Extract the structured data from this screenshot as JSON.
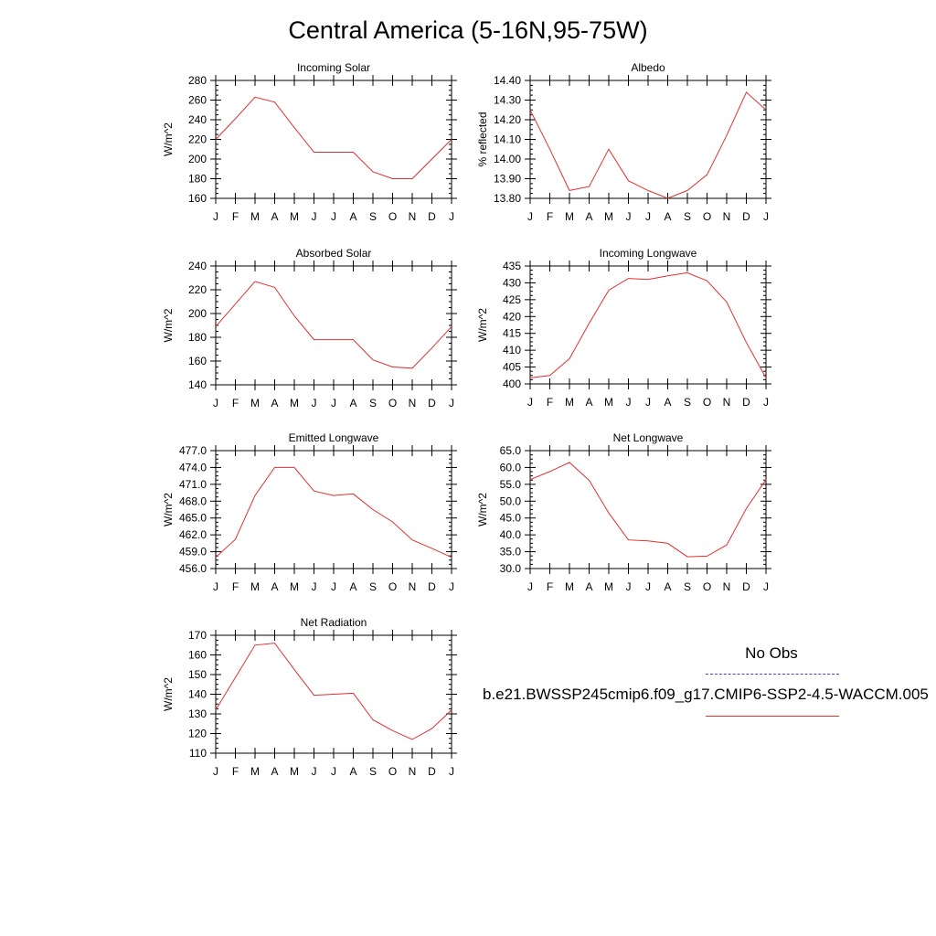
{
  "title": "Central America (5-16N,95-75W)",
  "legend": {
    "obs_label": "No Obs",
    "model_label": "b.e21.BWSSP245cmip6.f09_g17.CMIP6-SSP2-4.5-WACCM.005",
    "obs_color": "#3f3fff",
    "model_color": "#e03030"
  },
  "chart_data": [
    {
      "type": "line",
      "title": "Incoming Solar",
      "ylabel": "W/m^2",
      "xlabel": "",
      "categories": [
        "J",
        "F",
        "M",
        "A",
        "M",
        "J",
        "J",
        "A",
        "S",
        "O",
        "N",
        "D",
        "J"
      ],
      "yticks": [
        "160",
        "180",
        "200",
        "220",
        "240",
        "260",
        "280"
      ],
      "ylim": [
        160,
        280
      ],
      "values": [
        220,
        241,
        263,
        258,
        232,
        207,
        207,
        207,
        187,
        180,
        180,
        200,
        220
      ]
    },
    {
      "type": "line",
      "title": "Albedo",
      "ylabel": "% reflected",
      "xlabel": "",
      "categories": [
        "J",
        "F",
        "M",
        "A",
        "M",
        "J",
        "J",
        "A",
        "S",
        "O",
        "N",
        "D",
        "J"
      ],
      "yticks": [
        "13.80",
        "13.90",
        "14.00",
        "14.10",
        "14.20",
        "14.30",
        "14.40"
      ],
      "ylim": [
        13.8,
        14.4
      ],
      "values": [
        14.25,
        14.05,
        13.84,
        13.86,
        14.05,
        13.89,
        13.84,
        13.8,
        13.84,
        13.92,
        14.12,
        14.34,
        14.25
      ]
    },
    {
      "type": "line",
      "title": "Absorbed Solar",
      "ylabel": "W/m^2",
      "xlabel": "",
      "categories": [
        "J",
        "F",
        "M",
        "A",
        "M",
        "J",
        "J",
        "A",
        "S",
        "O",
        "N",
        "D",
        "J"
      ],
      "yticks": [
        "140",
        "160",
        "180",
        "200",
        "220",
        "240"
      ],
      "ylim": [
        140,
        240
      ],
      "values": [
        189,
        208,
        227,
        222,
        198,
        178,
        178,
        178,
        161,
        155,
        154,
        171,
        189
      ]
    },
    {
      "type": "line",
      "title": "Incoming Longwave",
      "ylabel": "W/m^2",
      "xlabel": "",
      "categories": [
        "J",
        "F",
        "M",
        "A",
        "M",
        "J",
        "J",
        "A",
        "S",
        "O",
        "N",
        "D",
        "J"
      ],
      "yticks": [
        "400",
        "405",
        "410",
        "415",
        "420",
        "425",
        "430",
        "435"
      ],
      "ylim": [
        400,
        435
      ],
      "values": [
        401.8,
        402.5,
        407.5,
        418,
        427.8,
        431.3,
        431,
        432.1,
        433,
        430.6,
        424.3,
        412.3,
        401.8
      ]
    },
    {
      "type": "line",
      "title": "Emitted Longwave",
      "ylabel": "W/m^2",
      "xlabel": "",
      "categories": [
        "J",
        "F",
        "M",
        "A",
        "M",
        "J",
        "J",
        "A",
        "S",
        "O",
        "N",
        "D",
        "J"
      ],
      "yticks": [
        "456.0",
        "459.0",
        "462.0",
        "465.0",
        "468.0",
        "471.0",
        "474.0",
        "477.0"
      ],
      "ylim": [
        456,
        477
      ],
      "values": [
        458,
        461.2,
        469,
        474,
        474,
        469.8,
        469,
        469.3,
        466.5,
        464.3,
        461.1,
        459.6,
        458
      ]
    },
    {
      "type": "line",
      "title": "Net Longwave",
      "ylabel": "W/m^2",
      "xlabel": "",
      "categories": [
        "J",
        "F",
        "M",
        "A",
        "M",
        "J",
        "J",
        "A",
        "S",
        "O",
        "N",
        "D",
        "J"
      ],
      "yticks": [
        "30.0",
        "35.0",
        "40.0",
        "45.0",
        "50.0",
        "55.0",
        "60.0",
        "65.0"
      ],
      "ylim": [
        30,
        65
      ],
      "values": [
        56.4,
        58.8,
        61.5,
        56.2,
        46.5,
        38.5,
        38.2,
        37.5,
        33.5,
        33.7,
        37,
        47.8,
        56.4
      ]
    },
    {
      "type": "line",
      "title": "Net Radiation",
      "ylabel": "W/m^2",
      "xlabel": "",
      "categories": [
        "J",
        "F",
        "M",
        "A",
        "M",
        "J",
        "J",
        "A",
        "S",
        "O",
        "N",
        "D",
        "J"
      ],
      "yticks": [
        "110",
        "120",
        "130",
        "140",
        "150",
        "160",
        "170"
      ],
      "ylim": [
        110,
        170
      ],
      "values": [
        132,
        148.5,
        165,
        166,
        152.5,
        139.5,
        140,
        140.5,
        127,
        121.5,
        117,
        122.5,
        132
      ]
    }
  ]
}
